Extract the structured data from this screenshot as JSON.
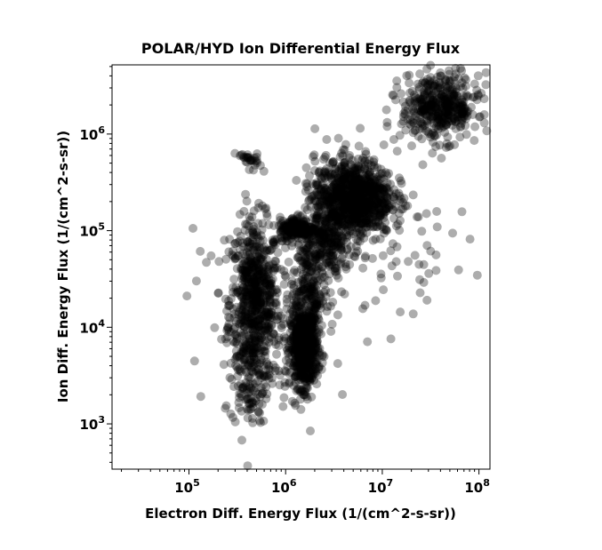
{
  "chart_data": {
    "type": "scatter",
    "title": "POLAR/HYD  Ion Differential Energy Flux",
    "xlabel": "Electron Diff. Energy Flux (1/(cm^2-s-sr))",
    "ylabel": "Ion Diff. Energy Flux (1/(cm^2-s-sr))",
    "xscale": "log",
    "yscale": "log",
    "xlim": [
      16000,
      130000000
    ],
    "ylim": [
      340,
      5200000
    ],
    "grid": false,
    "marker_color": "#000000",
    "marker_alpha": 0.32,
    "x_ticks": [
      {
        "value": 100000,
        "base": "10",
        "exp": "5"
      },
      {
        "value": 1000000,
        "base": "10",
        "exp": "6"
      },
      {
        "value": 10000000,
        "base": "10",
        "exp": "7"
      },
      {
        "value": 100000000,
        "base": "10",
        "exp": "8"
      }
    ],
    "y_ticks": [
      {
        "value": 1000,
        "base": "10",
        "exp": "3"
      },
      {
        "value": 10000,
        "base": "10",
        "exp": "4"
      },
      {
        "value": 100000,
        "base": "10",
        "exp": "5"
      },
      {
        "value": 1000000,
        "base": "10",
        "exp": "6"
      }
    ],
    "clusters": [
      {
        "x_center": 480000,
        "y_center": 18000,
        "x_spread": 0.13,
        "y_spread": 0.42,
        "count": 700
      },
      {
        "x_center": 420000,
        "y_center": 2500,
        "x_spread": 0.1,
        "y_spread": 0.2,
        "count": 90
      },
      {
        "x_center": 1550000,
        "y_center": 6000,
        "x_spread": 0.07,
        "y_spread": 0.2,
        "count": 650
      },
      {
        "x_center": 1700000,
        "y_center": 22000,
        "x_spread": 0.09,
        "y_spread": 0.3,
        "count": 220
      },
      {
        "x_center": 1300000,
        "y_center": 105000,
        "x_spread": 0.09,
        "y_spread": 0.06,
        "count": 200
      },
      {
        "x_center": 5000000,
        "y_center": 220000,
        "x_spread": 0.2,
        "y_spread": 0.2,
        "count": 900
      },
      {
        "x_center": 2600000,
        "y_center": 80000,
        "x_spread": 0.14,
        "y_spread": 0.2,
        "count": 250
      },
      {
        "x_center": 40000000,
        "y_center": 1900000,
        "x_spread": 0.2,
        "y_spread": 0.17,
        "count": 450
      },
      {
        "x_center": 400000,
        "y_center": 540000,
        "x_spread": 0.06,
        "y_spread": 0.05,
        "count": 28
      },
      {
        "x_center": 1000000,
        "y_center": 18000,
        "x_spread": 0.45,
        "y_spread": 0.55,
        "count": 110
      },
      {
        "x_center": 9000000,
        "y_center": 150000,
        "x_spread": 0.45,
        "y_spread": 0.45,
        "count": 70
      },
      {
        "x_center": 30000000,
        "y_center": 80000,
        "x_spread": 0.3,
        "y_spread": 0.25,
        "count": 16
      }
    ]
  }
}
